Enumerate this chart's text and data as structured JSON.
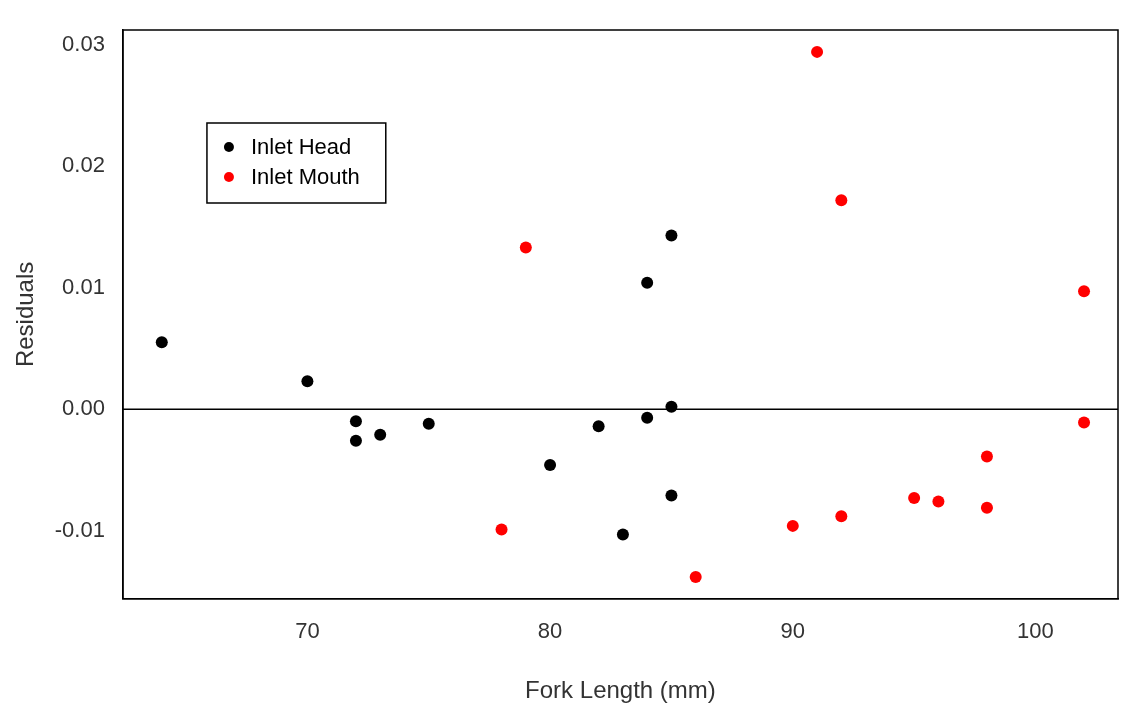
{
  "chart_data": {
    "type": "scatter",
    "xlabel": "Fork Length (mm)",
    "ylabel": "Residuals",
    "xlim": [
      62.4,
      103.4
    ],
    "ylim": [
      -0.0156,
      0.0312
    ],
    "xticks": [
      70,
      80,
      90,
      100
    ],
    "yticks": [
      -0.01,
      {
        "value": 0,
        "label": "0.00"
      },
      0.01,
      0.02,
      0.03
    ],
    "grid": false,
    "legend": "top left",
    "marker": "circle",
    "ref_lines": [
      {
        "axis": "y",
        "value": 0,
        "color": "#000000"
      }
    ],
    "series": [
      {
        "name": "Inlet Head",
        "color": "#000000",
        "x": [
          64,
          70,
          72,
          72,
          73,
          75,
          80,
          82,
          83,
          84,
          84,
          85,
          85,
          85
        ],
        "values": [
          0.0055,
          0.0023,
          -0.001,
          -0.0026,
          -0.0021,
          -0.0012,
          -0.0046,
          -0.0014,
          -0.0103,
          0.0104,
          -0.0007,
          0.0143,
          0.0002,
          -0.0071
        ]
      },
      {
        "name": "Inlet Mouth",
        "color": "#ff0000",
        "x": [
          78,
          79,
          86,
          90,
          91,
          92,
          92,
          95,
          96,
          98,
          98,
          102,
          102
        ],
        "values": [
          -0.0099,
          0.0133,
          -0.0138,
          -0.0096,
          0.0294,
          0.0172,
          -0.0088,
          -0.0073,
          -0.0076,
          -0.0039,
          -0.0081,
          0.0097,
          -0.0011
        ]
      }
    ]
  }
}
